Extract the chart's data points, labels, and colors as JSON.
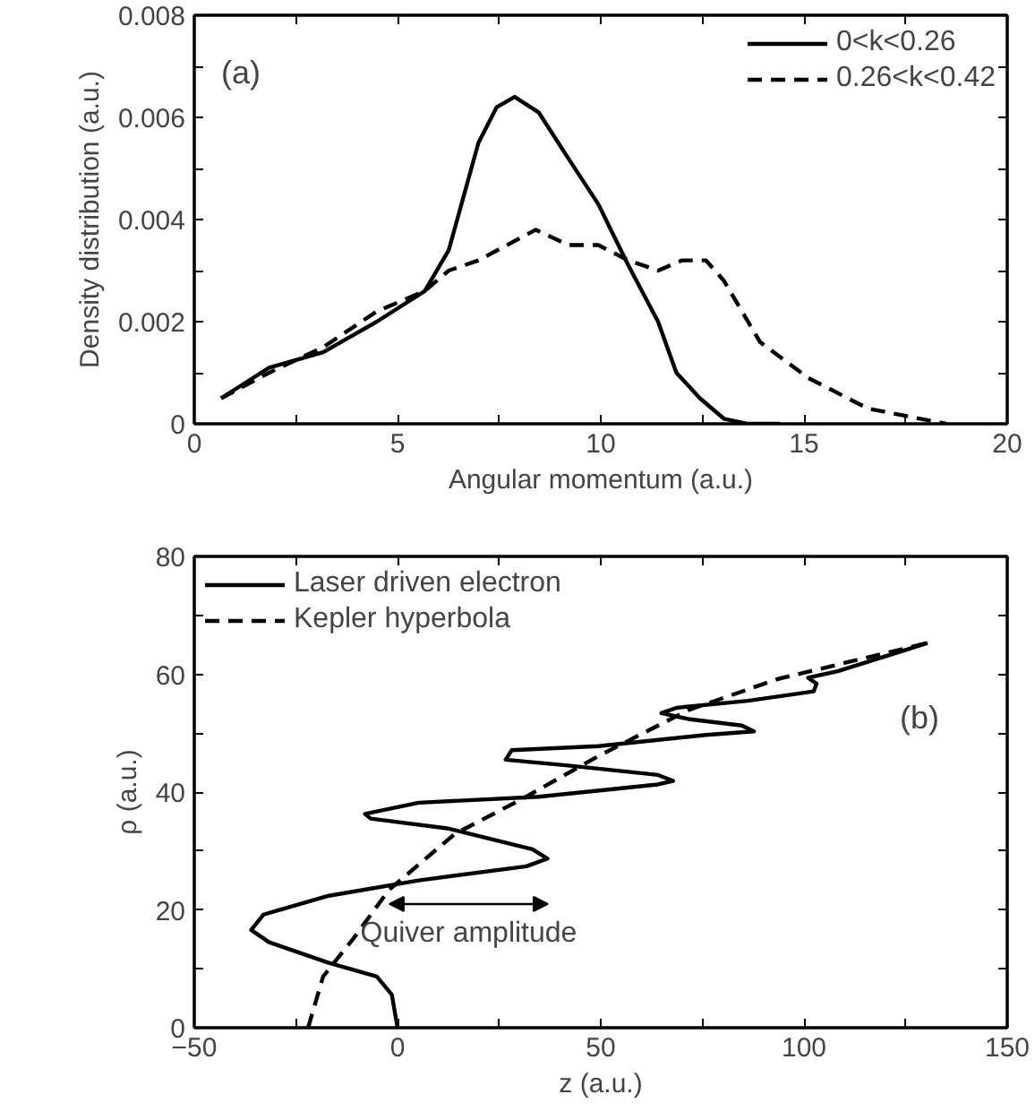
{
  "chart_data": [
    {
      "type": "line",
      "xlabel": "Angular momentum (a.u.)",
      "ylabel": "Density distribution (a.u.)",
      "annotations": [
        "(a)"
      ],
      "xlim": [
        0,
        20
      ],
      "ylim": [
        0,
        0.008
      ],
      "xticks": [
        0,
        {
          "value": 2.5,
          "label": null
        },
        5,
        {
          "value": 7.5,
          "label": null
        },
        10,
        {
          "value": 12.5,
          "label": null
        },
        15,
        {
          "value": 17.5,
          "label": null
        },
        20
      ],
      "yticks": [
        0,
        {
          "value": 0.001,
          "label": null
        },
        0.002,
        {
          "value": 0.003,
          "label": null
        },
        0.004,
        {
          "value": 0.005,
          "label": null
        },
        0.006,
        {
          "value": 0.007,
          "label": null
        },
        0.008
      ],
      "grid": false,
      "legend": "top right",
      "marker": "none",
      "series": [
        {
          "name": "0<k<0.26",
          "color": "#000000",
          "line_style": "solid",
          "x": [
            0.66,
            1.84,
            3.17,
            4.49,
            5.67,
            6.26,
            6.99,
            7.44,
            7.88,
            8.47,
            9.2,
            9.94,
            10.68,
            11.41,
            11.86,
            12.44,
            13.03,
            13.6,
            14.4
          ],
          "values": [
            0.0005,
            0.0011,
            0.0014,
            0.002,
            0.0026,
            0.0034,
            0.0055,
            0.0062,
            0.0064,
            0.0061,
            0.0052,
            0.0043,
            0.0031,
            0.002,
            0.001,
            0.0005,
            0.0001,
            0.0,
            0.0
          ]
        },
        {
          "name": "0.26<k<0.42",
          "color": "#000000",
          "line_style": "dashed",
          "x": [
            0.66,
            1.84,
            3.17,
            4.49,
            5.67,
            6.26,
            6.99,
            8.4,
            9.2,
            9.94,
            10.68,
            11.41,
            12.0,
            12.59,
            13.03,
            13.92,
            15.1,
            16.57,
            18.5
          ],
          "values": [
            0.0005,
            0.001,
            0.0015,
            0.0022,
            0.0026,
            0.003,
            0.0032,
            0.0038,
            0.0035,
            0.0035,
            0.0032,
            0.003,
            0.0032,
            0.0032,
            0.0028,
            0.0016,
            0.0009,
            0.0003,
            0.0
          ]
        }
      ]
    },
    {
      "type": "line",
      "xlabel": "z (a.u.)",
      "ylabel": "ρ (a.u.)",
      "annotations": [
        "(b)",
        {
          "text": "Quiver amplitude",
          "x": -2,
          "y": 21
        }
      ],
      "xlim": [
        -50,
        150
      ],
      "ylim": [
        0,
        80
      ],
      "xticks": [
        {
          "value": -50,
          "label": "−50"
        },
        {
          "value": -25,
          "label": null
        },
        0,
        {
          "value": 25,
          "label": null
        },
        50,
        {
          "value": 75,
          "label": null
        },
        100,
        {
          "value": 125,
          "label": null
        },
        150
      ],
      "yticks": [
        0,
        {
          "value": 10,
          "label": null
        },
        20,
        {
          "value": 30,
          "label": null
        },
        40,
        {
          "value": 50,
          "label": null
        },
        60,
        {
          "value": 70,
          "label": null
        },
        80
      ],
      "grid": false,
      "legend": "top left",
      "marker": "none",
      "series": [
        {
          "name": "Laser driven electron",
          "color": "#000000",
          "line_style": "solid",
          "x": [
            0,
            -1.4,
            -5.1,
            -16.9,
            -31.6,
            -36,
            -33,
            -16.9,
            5.2,
            31.7,
            36.9,
            33.2,
            12.6,
            -6.6,
            -8,
            5.2,
            34.7,
            64.1,
            67.8,
            64.1,
            42,
            26.6,
            28.1,
            49.4,
            75.9,
            87.7,
            84.7,
            71.5,
            64.9,
            68.6,
            86.2,
            102.4,
            103.1,
            101,
            108.3,
            130.4
          ],
          "values": [
            0,
            5.6,
            8.7,
            11.0,
            14.5,
            16.6,
            19.2,
            22.4,
            25.0,
            27.4,
            28.7,
            30.3,
            33.8,
            35.5,
            36.3,
            38.2,
            39.2,
            41.3,
            41.9,
            42.9,
            44.5,
            45.5,
            47.1,
            47.8,
            49.7,
            50.3,
            51.3,
            52.4,
            53.4,
            54.3,
            55.5,
            57.1,
            58.4,
            59.4,
            60.5,
            65.3
          ]
        },
        {
          "name": "Kepler hyperbola",
          "color": "#000000",
          "line_style": "dashed",
          "x": [
            -22,
            -18.3,
            -11,
            -2.1,
            14.1,
            30.3,
            49.4,
            71.5,
            93.6,
            130.4
          ],
          "values": [
            0,
            8.7,
            15,
            23.4,
            32.9,
            38.7,
            46.1,
            53.9,
            59.2,
            65.3
          ]
        }
      ]
    }
  ]
}
